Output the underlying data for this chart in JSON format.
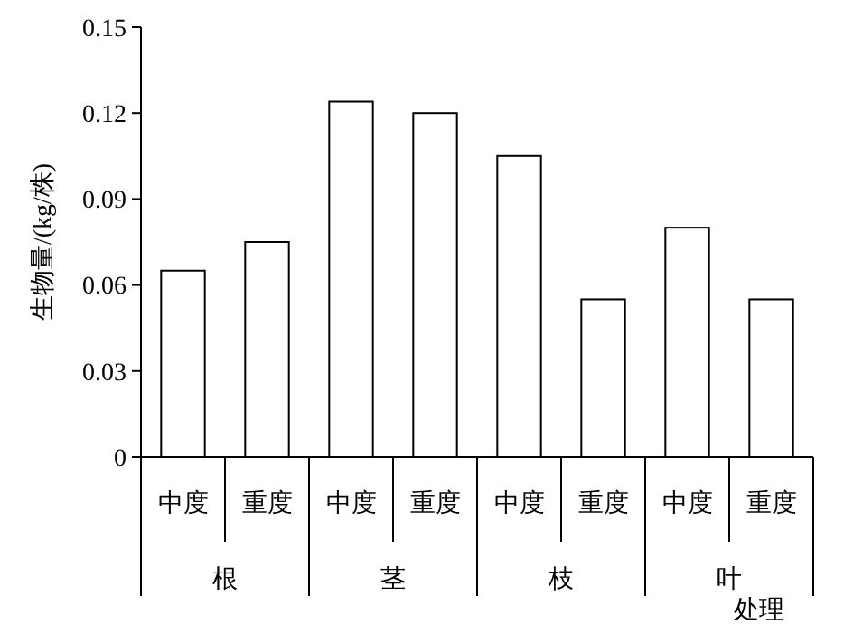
{
  "chart_data": {
    "type": "bar",
    "ylabel": "生物量/(kg/株)",
    "xlabel": "处理",
    "categories": [
      "中度",
      "重度",
      "中度",
      "重度",
      "中度",
      "重度",
      "中度",
      "重度"
    ],
    "values": [
      0.065,
      0.075,
      0.124,
      0.12,
      0.105,
      0.055,
      0.08,
      0.055
    ],
    "color": "#ffffff",
    "ylim": [
      0,
      0.15
    ],
    "yticks": [
      {
        "value": 0,
        "label": "0"
      },
      {
        "value": 0.03,
        "label": "0.03"
      },
      {
        "value": 0.06,
        "label": "0.06"
      },
      {
        "value": 0.09,
        "label": "0.09"
      },
      {
        "value": 0.12,
        "label": "0.12"
      },
      {
        "value": 0.15,
        "label": "0.15"
      }
    ],
    "annotations": [
      "根",
      "茎",
      "枝",
      "叶"
    ],
    "grid": false
  }
}
